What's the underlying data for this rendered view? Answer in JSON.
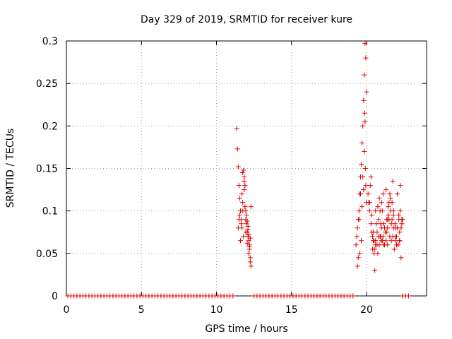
{
  "chart_data": {
    "type": "scatter",
    "title": "Day 329 of 2019, SRMTID for receiver kure",
    "xlabel": "GPS time / hours",
    "ylabel": "SRMTID / TECUs",
    "xlim": [
      0,
      24
    ],
    "ylim": [
      0,
      0.3
    ],
    "xticks": [
      0,
      5,
      10,
      15,
      20
    ],
    "xtick_labels": [
      "0",
      "5",
      "10",
      "15",
      "20"
    ],
    "yticks": [
      0,
      0.05,
      0.1,
      0.15,
      0.2,
      0.25,
      0.3
    ],
    "ytick_labels": [
      "0",
      "0.05",
      "0.1",
      "0.15",
      "0.2",
      "0.25",
      "0.3"
    ],
    "grid": true,
    "marker": "+",
    "color": "#e00000",
    "series": [
      {
        "name": "SRMTID",
        "x": [
          0.1,
          0.3,
          0.5,
          0.7,
          0.9,
          1.1,
          1.3,
          1.5,
          1.7,
          1.9,
          2.1,
          2.3,
          2.5,
          2.7,
          2.9,
          3.1,
          3.3,
          3.5,
          3.7,
          3.9,
          4.1,
          4.3,
          4.5,
          4.7,
          4.9,
          5.1,
          5.3,
          5.5,
          5.7,
          5.9,
          6.1,
          6.3,
          6.5,
          6.7,
          6.9,
          7.1,
          7.3,
          7.5,
          7.7,
          7.9,
          8.1,
          8.3,
          8.5,
          8.7,
          8.9,
          9.1,
          9.3,
          9.5,
          9.7,
          9.9,
          10.1,
          10.3,
          10.5,
          10.7,
          10.9,
          11.1,
          12.5,
          12.7,
          12.9,
          13.1,
          13.3,
          13.5,
          13.7,
          13.9,
          14.1,
          14.3,
          14.5,
          14.7,
          14.9,
          15.1,
          15.3,
          15.5,
          15.7,
          15.9,
          16.1,
          16.3,
          16.5,
          16.7,
          16.9,
          17.1,
          17.3,
          17.5,
          17.7,
          17.9,
          18.1,
          18.3,
          18.5,
          18.7,
          18.9,
          19.1,
          22.4,
          22.6,
          22.8,
          11.35,
          11.4,
          11.45,
          11.5,
          11.55,
          11.6,
          11.65,
          11.7,
          11.75,
          11.8,
          11.85,
          11.9,
          11.95,
          12.0,
          12.05,
          12.1,
          12.15,
          12.2,
          12.25,
          12.3,
          11.55,
          11.7,
          11.85,
          11.95,
          12.05,
          12.15,
          12.25,
          11.45,
          11.75,
          11.9,
          12.0,
          12.1,
          12.2,
          11.6,
          11.8,
          12.3,
          12.25,
          12.15,
          11.5,
          11.65,
          11.95,
          12.05,
          12.1,
          12.2,
          11.85,
          11.75,
          19.3,
          19.35,
          19.4,
          19.45,
          19.5,
          19.55,
          19.6,
          19.65,
          19.7,
          19.75,
          19.8,
          19.85,
          19.9,
          19.95,
          20.0,
          19.85,
          19.9,
          19.88,
          19.92,
          19.95,
          19.98,
          19.75,
          19.6,
          19.5,
          19.7,
          19.4,
          19.55,
          19.65,
          19.8,
          19.45,
          20.1,
          20.2,
          20.3,
          20.4,
          20.5,
          20.6,
          20.7,
          20.8,
          20.9,
          21.0,
          21.1,
          21.2,
          21.3,
          21.4,
          21.5,
          21.6,
          21.7,
          21.8,
          21.9,
          22.0,
          22.1,
          22.2,
          22.3,
          22.4,
          20.15,
          20.25,
          20.35,
          20.45,
          20.55,
          20.65,
          20.75,
          20.85,
          20.95,
          21.05,
          21.15,
          21.25,
          21.35,
          21.45,
          21.55,
          21.65,
          21.75,
          21.85,
          21.95,
          22.05,
          22.15,
          22.25,
          22.35,
          20.5,
          20.7,
          20.9,
          21.1,
          21.3,
          21.5,
          21.7,
          21.9,
          22.1,
          22.3,
          20.4,
          20.6,
          20.8,
          21.0,
          21.2,
          21.4,
          21.6,
          21.8,
          22.0,
          22.2,
          20.3,
          20.55,
          20.85,
          21.15,
          21.45,
          21.75,
          22.05,
          22.35,
          20.45,
          20.75,
          21.05,
          21.35,
          21.65,
          21.95,
          22.25,
          20.2,
          20.6,
          21.0,
          21.4,
          21.8,
          22.2,
          20.35,
          20.95,
          21.55,
          22.15
        ],
        "y": [
          0,
          0,
          0,
          0,
          0,
          0,
          0,
          0,
          0,
          0,
          0,
          0,
          0,
          0,
          0,
          0,
          0,
          0,
          0,
          0,
          0,
          0,
          0,
          0,
          0,
          0,
          0,
          0,
          0,
          0,
          0,
          0,
          0,
          0,
          0,
          0,
          0,
          0,
          0,
          0,
          0,
          0,
          0,
          0,
          0,
          0,
          0,
          0,
          0,
          0,
          0,
          0,
          0,
          0,
          0,
          0,
          0,
          0,
          0,
          0,
          0,
          0,
          0,
          0,
          0,
          0,
          0,
          0,
          0,
          0,
          0,
          0,
          0,
          0,
          0,
          0,
          0,
          0,
          0,
          0,
          0,
          0,
          0,
          0,
          0,
          0,
          0,
          0,
          0,
          0,
          0,
          0,
          0,
          0.197,
          0.173,
          0.152,
          0.13,
          0.115,
          0.1,
          0.09,
          0.08,
          0.145,
          0.148,
          0.135,
          0.105,
          0.09,
          0.085,
          0.075,
          0.07,
          0.065,
          0.06,
          0.04,
          0.035,
          0.095,
          0.12,
          0.125,
          0.1,
          0.088,
          0.072,
          0.068,
          0.08,
          0.11,
          0.13,
          0.095,
          0.082,
          0.058,
          0.065,
          0.07,
          0.105,
          0.045,
          0.05,
          0.09,
          0.085,
          0.075,
          0.062,
          0.078,
          0.055,
          0.14,
          0.1,
          0.06,
          0.07,
          0.08,
          0.09,
          0.1,
          0.12,
          0.14,
          0.155,
          0.18,
          0.2,
          0.23,
          0.26,
          0.297,
          0.28,
          0.24,
          0.17,
          0.205,
          0.215,
          0.15,
          0.13,
          0.11,
          0.14,
          0.12,
          0.09,
          0.105,
          0.035,
          0.05,
          0.065,
          0.125,
          0.045,
          0.12,
          0.1,
          0.085,
          0.07,
          0.065,
          0.06,
          0.075,
          0.09,
          0.1,
          0.08,
          0.07,
          0.06,
          0.065,
          0.08,
          0.09,
          0.1,
          0.11,
          0.095,
          0.085,
          0.07,
          0.06,
          0.065,
          0.08,
          0.09,
          0.11,
          0.13,
          0.095,
          0.075,
          0.055,
          0.085,
          0.105,
          0.115,
          0.07,
          0.065,
          0.06,
          0.075,
          0.09,
          0.105,
          0.12,
          0.085,
          0.07,
          0.055,
          0.065,
          0.08,
          0.095,
          0.1,
          0.085,
          0.05,
          0.06,
          0.07,
          0.12,
          0.125,
          0.11,
          0.09,
          0.07,
          0.06,
          0.045,
          0.055,
          0.1,
          0.07,
          0.065,
          0.08,
          0.09,
          0.115,
          0.08,
          0.06,
          0.075,
          0.14,
          0.03,
          0.06,
          0.085,
          0.095,
          0.135,
          0.12,
          0.09,
          0.065,
          0.05,
          0.1,
          0.075,
          0.065,
          0.08,
          0.13,
          0.11,
          0.065,
          0.11,
          0.06,
          0.1,
          0.065,
          0.075,
          0.085,
          0.07,
          0.09
        ]
      }
    ]
  }
}
